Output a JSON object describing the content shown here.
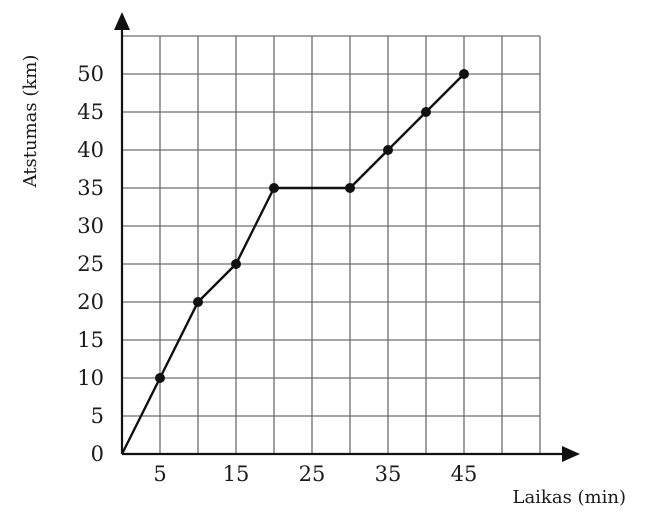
{
  "chart_data": {
    "type": "line",
    "title": "",
    "xlabel": "Laikas (min)",
    "ylabel": "Atstumas (km)",
    "xlim": [
      0,
      55
    ],
    "ylim": [
      0,
      55
    ],
    "grid": true,
    "x_tick_labels": [
      "5",
      "15",
      "25",
      "35",
      "45"
    ],
    "y_tick_labels": [
      "0",
      "5",
      "10",
      "15",
      "20",
      "25",
      "30",
      "35",
      "40",
      "45",
      "50"
    ],
    "series": [
      {
        "x": [
          0,
          5,
          10,
          15,
          20,
          30,
          35,
          40,
          45
        ],
        "y": [
          0,
          10,
          20,
          25,
          35,
          35,
          40,
          45,
          50
        ]
      }
    ],
    "colors": {
      "line": "#111111",
      "grid": "#6e6e6e"
    }
  }
}
